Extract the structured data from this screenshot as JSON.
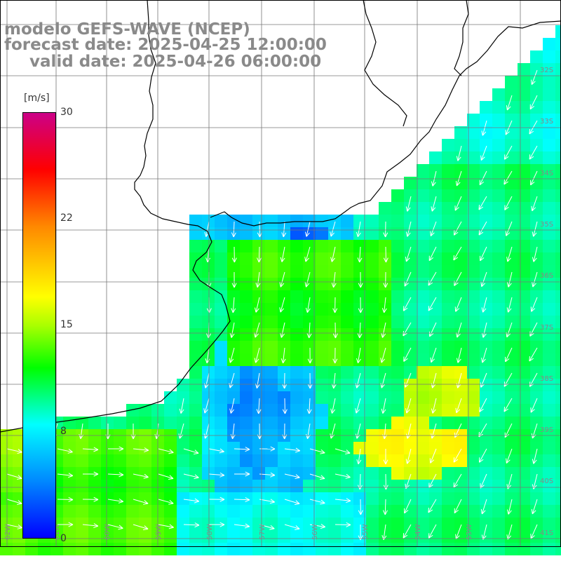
{
  "title": {
    "line1": "modelo GEFS-WAVE (NCEP)",
    "line2": "forecast date: 2025-04-25 12:00:00",
    "line3": "valid date: 2025-04-26 06:00:00"
  },
  "colorbar": {
    "unit": "[m/s]",
    "ticks": [
      "30",
      "22",
      "15",
      "8",
      "0"
    ],
    "tick_values": [
      30,
      22,
      15,
      8,
      0
    ],
    "range": [
      0,
      30
    ],
    "stops": [
      {
        "v": 0,
        "c": "#0000ff"
      },
      {
        "v": 4,
        "c": "#0088ff"
      },
      {
        "v": 8,
        "c": "#00ffff"
      },
      {
        "v": 12,
        "c": "#00ff00"
      },
      {
        "v": 15,
        "c": "#aaff00"
      },
      {
        "v": 17,
        "c": "#ffff00"
      },
      {
        "v": 22,
        "c": "#ff8800"
      },
      {
        "v": 26,
        "c": "#ff0000"
      },
      {
        "v": 30,
        "c": "#cc0088"
      }
    ]
  },
  "map": {
    "lat_labels": [
      "32S",
      "33S",
      "34S",
      "35S",
      "36S",
      "37S",
      "38S",
      "39S",
      "40S",
      "41S"
    ],
    "lon_labels": [
      "62W",
      "61W",
      "60W",
      "59W",
      "58W",
      "57W",
      "56W",
      "55W",
      "54W",
      "53W"
    ],
    "colors": {
      "land": "#ffffff",
      "coast": "#000000",
      "grid": "#777777",
      "arrow": "#ffffff"
    }
  }
}
